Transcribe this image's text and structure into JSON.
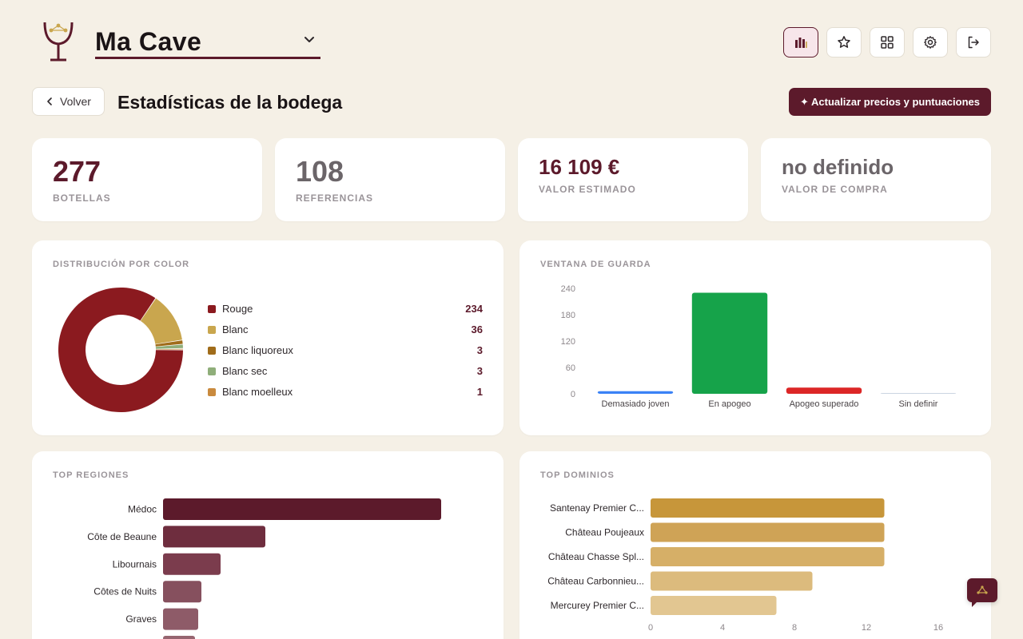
{
  "header": {
    "cellar_name": "Ma Cave",
    "buttons": [
      "stats-icon",
      "star-icon",
      "grid-icon",
      "gear-icon",
      "logout-icon"
    ]
  },
  "title_row": {
    "back_label": "Volver",
    "page_title": "Estadísticas de la bodega",
    "update_label": "✦ Actualizar precios y puntuaciones"
  },
  "stats": {
    "bottles": {
      "value": "277",
      "label": "BOTELLAS"
    },
    "references": {
      "value": "108",
      "label": "REFERENCIAS"
    },
    "estimated": {
      "value": "16 109 €",
      "label": "VALOR ESTIMADO"
    },
    "purchase": {
      "value": "no definido",
      "label": "VALOR DE COMPRA"
    }
  },
  "colors_section": {
    "title": "DISTRIBUCIÓN POR COLOR",
    "items": [
      {
        "label": "Rouge",
        "count": "234",
        "color": "#8b1a1f"
      },
      {
        "label": "Blanc",
        "count": "36",
        "color": "#c9a64e"
      },
      {
        "label": "Blanc liquoreux",
        "count": "3",
        "color": "#a06c1a"
      },
      {
        "label": "Blanc sec",
        "count": "3",
        "color": "#8fae7a"
      },
      {
        "label": "Blanc moelleux",
        "count": "1",
        "color": "#c98a3e"
      }
    ]
  },
  "chart_data": [
    {
      "type": "pie",
      "title": "DISTRIBUCIÓN POR COLOR",
      "categories": [
        "Rouge",
        "Blanc",
        "Blanc liquoreux",
        "Blanc sec",
        "Blanc moelleux"
      ],
      "values": [
        234,
        36,
        3,
        3,
        1
      ],
      "colors": [
        "#8b1a1f",
        "#c9a64e",
        "#a06c1a",
        "#8fae7a",
        "#c98a3e"
      ],
      "legend": "right"
    },
    {
      "type": "bar",
      "title": "VENTANA DE GUARDA",
      "categories": [
        "Demasiado joven",
        "En apogeo",
        "Apogeo superado",
        "Sin definir"
      ],
      "values": [
        6,
        230,
        14,
        0
      ],
      "colors": [
        "#3b82f6",
        "#16a34a",
        "#dc2626",
        "#cbd5e1"
      ],
      "ylim": [
        0,
        240
      ],
      "yticks": [
        "0",
        "60",
        "120",
        "180",
        "240"
      ],
      "grid": false
    },
    {
      "type": "bar",
      "orientation": "horizontal",
      "title": "TOP REGIONES",
      "categories": [
        "Médoc",
        "Côte de Beaune",
        "Libournais",
        "Côtes de Nuits",
        "Graves",
        ""
      ],
      "values": [
        87,
        32,
        18,
        12,
        11,
        10
      ],
      "xlim": [
        0,
        100
      ],
      "colors": [
        "#5c1a2b",
        "#6e2d3e",
        "#7b3c4d",
        "#86505e",
        "#8e5b68",
        "#966570"
      ]
    },
    {
      "type": "bar",
      "orientation": "horizontal",
      "title": "TOP DOMINIOS",
      "categories": [
        "Santenay Premier C...",
        "Château Poujeaux",
        "Château Chasse Spl...",
        "Château Carbonnieu...",
        "Mercurey Premier C..."
      ],
      "values": [
        13,
        13,
        13,
        9,
        7
      ],
      "xlim": [
        0,
        16
      ],
      "xticks": [
        "0",
        "4",
        "8",
        "12",
        "16"
      ],
      "colors": [
        "#c7963a",
        "#cfa356",
        "#d6af67",
        "#dcbb7d",
        "#e2c691"
      ]
    }
  ],
  "chat": {
    "icon": "chat-icon"
  }
}
